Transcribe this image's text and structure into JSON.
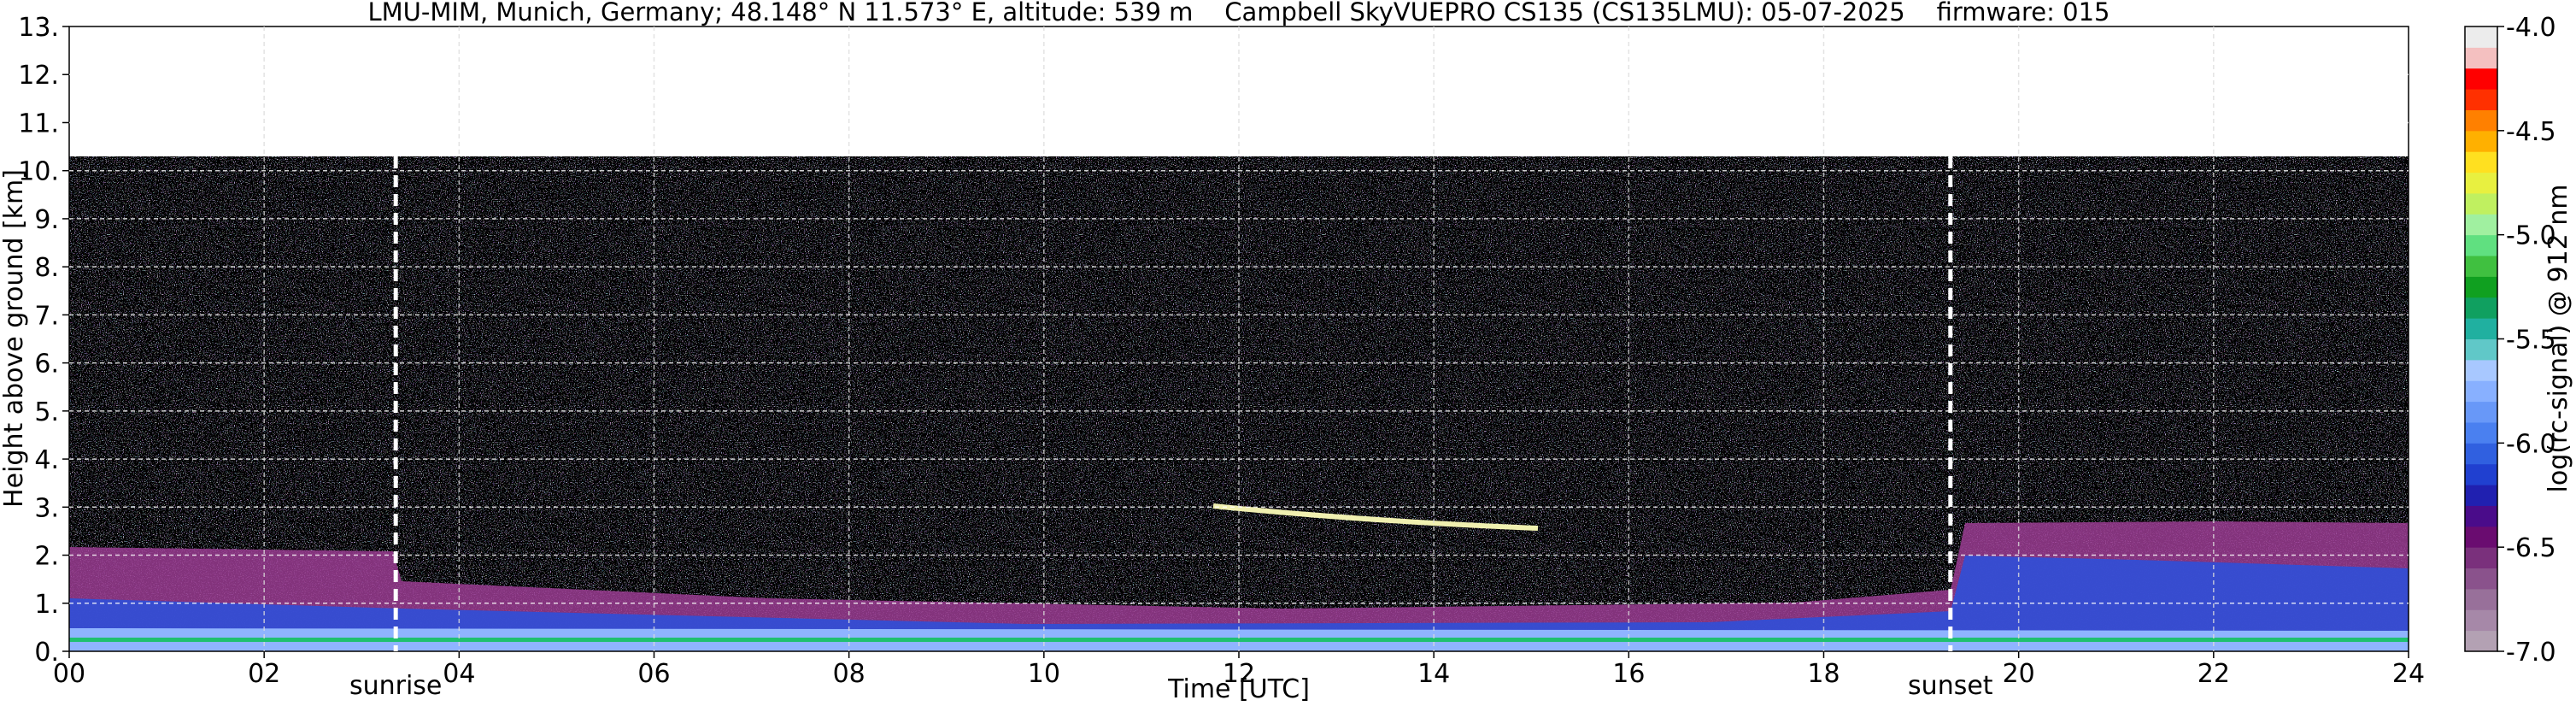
{
  "chart_data": {
    "type": "heatmap",
    "title": "LMU-MIM, Munich, Germany; 48.148° N 11.573° E, altitude: 539 m    Campbell SkyVUEPRO CS135 (CS135LMU): 05-07-2025    firmware: 015",
    "x_label": "Time [UTC]",
    "y_label": "Height above ground [km]",
    "colorbar_label": "log(rc-signal) @ 912 nm",
    "xlim": [
      0,
      24
    ],
    "xticks": [
      {
        "value": 0,
        "label": "00"
      },
      {
        "value": 2,
        "label": "02"
      },
      {
        "value": 4,
        "label": "04"
      },
      {
        "value": 6,
        "label": "06"
      },
      {
        "value": 8,
        "label": "08"
      },
      10,
      12,
      14,
      16,
      18,
      20,
      22,
      24
    ],
    "ylim": [
      0,
      13
    ],
    "yticks": [
      {
        "value": 0,
        "label": "0."
      },
      {
        "value": 1,
        "label": "1."
      },
      {
        "value": 2,
        "label": "2."
      },
      {
        "value": 3,
        "label": "3."
      },
      {
        "value": 4,
        "label": "4."
      },
      {
        "value": 5,
        "label": "5."
      },
      {
        "value": 6,
        "label": "6."
      },
      {
        "value": 7,
        "label": "7."
      },
      {
        "value": 8,
        "label": "8."
      },
      {
        "value": 9,
        "label": "9."
      },
      {
        "value": 10,
        "label": "10."
      },
      {
        "value": 11,
        "label": "11."
      },
      {
        "value": 12,
        "label": "12."
      },
      {
        "value": 13,
        "label": "13."
      }
    ],
    "grid": true,
    "clim": [
      -7,
      -4
    ],
    "cticks": [
      {
        "value": -7,
        "label": "-7.0"
      },
      {
        "value": -6.5,
        "label": "-6.5"
      },
      {
        "value": -6,
        "label": "-6.0"
      },
      {
        "value": -5.5,
        "label": "-5.5"
      },
      {
        "value": -5,
        "label": "-5.0"
      },
      {
        "value": -4.5,
        "label": "-4.5"
      },
      {
        "value": -4,
        "label": "-4.0"
      }
    ],
    "colormap": [
      "#b3a1b3",
      "#a688a8",
      "#98709a",
      "#8a528c",
      "#7a307c",
      "#6a0c70",
      "#4a0c8a",
      "#2020b0",
      "#2040d0",
      "#3060e0",
      "#4a80f0",
      "#6898f8",
      "#88b0ff",
      "#a8c8ff",
      "#60c8c8",
      "#20b0a0",
      "#10a060",
      "#10a020",
      "#40c040",
      "#60e080",
      "#a0f0a0",
      "#c0f060",
      "#e8f040",
      "#ffe020",
      "#ffb000",
      "#ff8000",
      "#ff3000",
      "#ff0000",
      "#f4c0c0",
      "#ececec"
    ],
    "annotations": [
      {
        "text": "sunrise",
        "x": 3.35
      },
      {
        "text": "sunset",
        "x": 19.3
      }
    ]
  }
}
